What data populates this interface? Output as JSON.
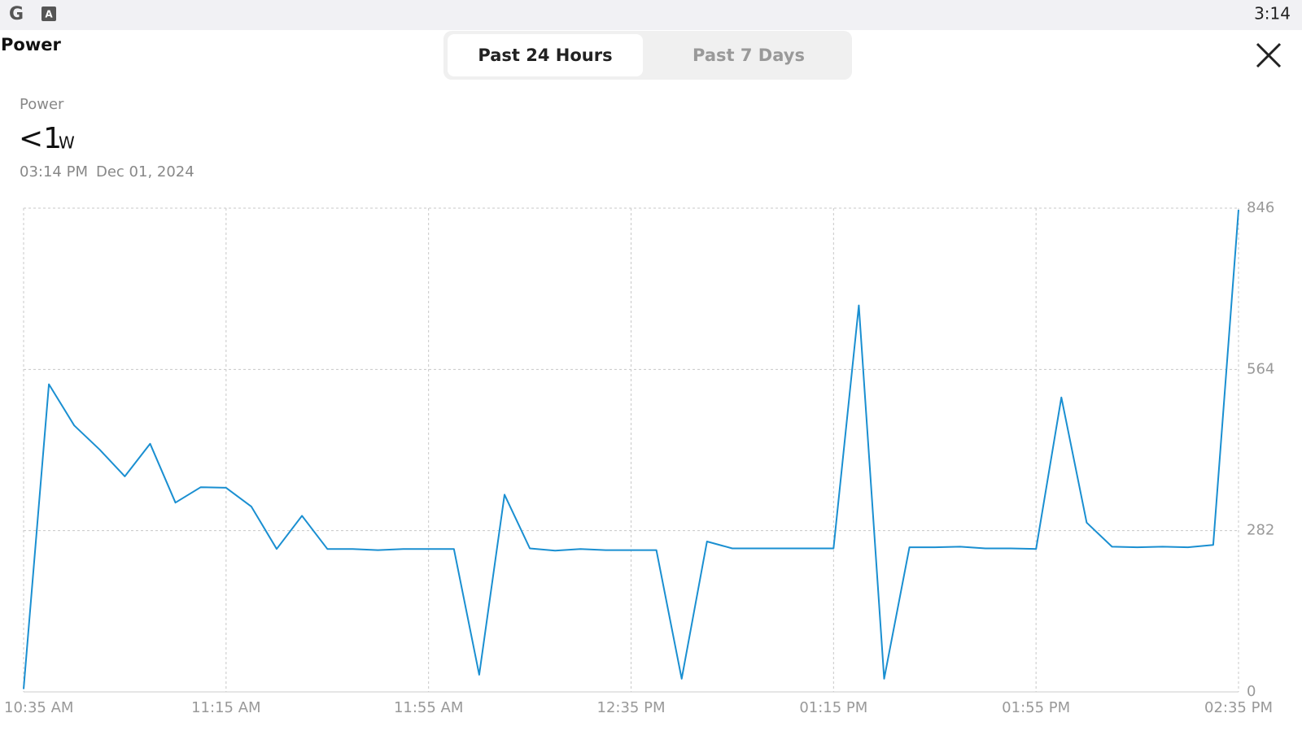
{
  "status_bar": {
    "app_icons": [
      "G",
      "A"
    ],
    "time": "3:14"
  },
  "header": {
    "title": "Power"
  },
  "tabs": [
    "Past 24 Hours",
    "Past 7 Days"
  ],
  "summary": {
    "label": "Power",
    "value": "<1",
    "unit": "W",
    "time": "03:14 PM",
    "date": "Dec 01, 2024"
  },
  "chart_data": {
    "type": "line",
    "color": "#1a8fd1",
    "grid": true,
    "categories": [
      "10:35 AM",
      null,
      null,
      null,
      null,
      null,
      null,
      null,
      "11:15 AM",
      null,
      null,
      null,
      null,
      null,
      null,
      null,
      "11:55 AM",
      null,
      null,
      null,
      null,
      null,
      null,
      null,
      "12:35 PM",
      null,
      null,
      null,
      null,
      null,
      null,
      null,
      "01:15 PM",
      null,
      null,
      null,
      null,
      null,
      null,
      null,
      "01:55 PM",
      null,
      null,
      null,
      null,
      null,
      null,
      null,
      "02:35 PM"
    ],
    "values": [
      5,
      538,
      466,
      424,
      377,
      434,
      331,
      358,
      357,
      324,
      250,
      308,
      250,
      250,
      248,
      250,
      250,
      250,
      30,
      345,
      251,
      247,
      250,
      248,
      248,
      248,
      23,
      263,
      251,
      251,
      251,
      251,
      251,
      676,
      23,
      253,
      253,
      254,
      251,
      251,
      250,
      515,
      296,
      254,
      253,
      254,
      253,
      257,
      843
    ],
    "ylim": [
      0,
      846
    ],
    "yticks": [
      0,
      282,
      564,
      846
    ]
  }
}
